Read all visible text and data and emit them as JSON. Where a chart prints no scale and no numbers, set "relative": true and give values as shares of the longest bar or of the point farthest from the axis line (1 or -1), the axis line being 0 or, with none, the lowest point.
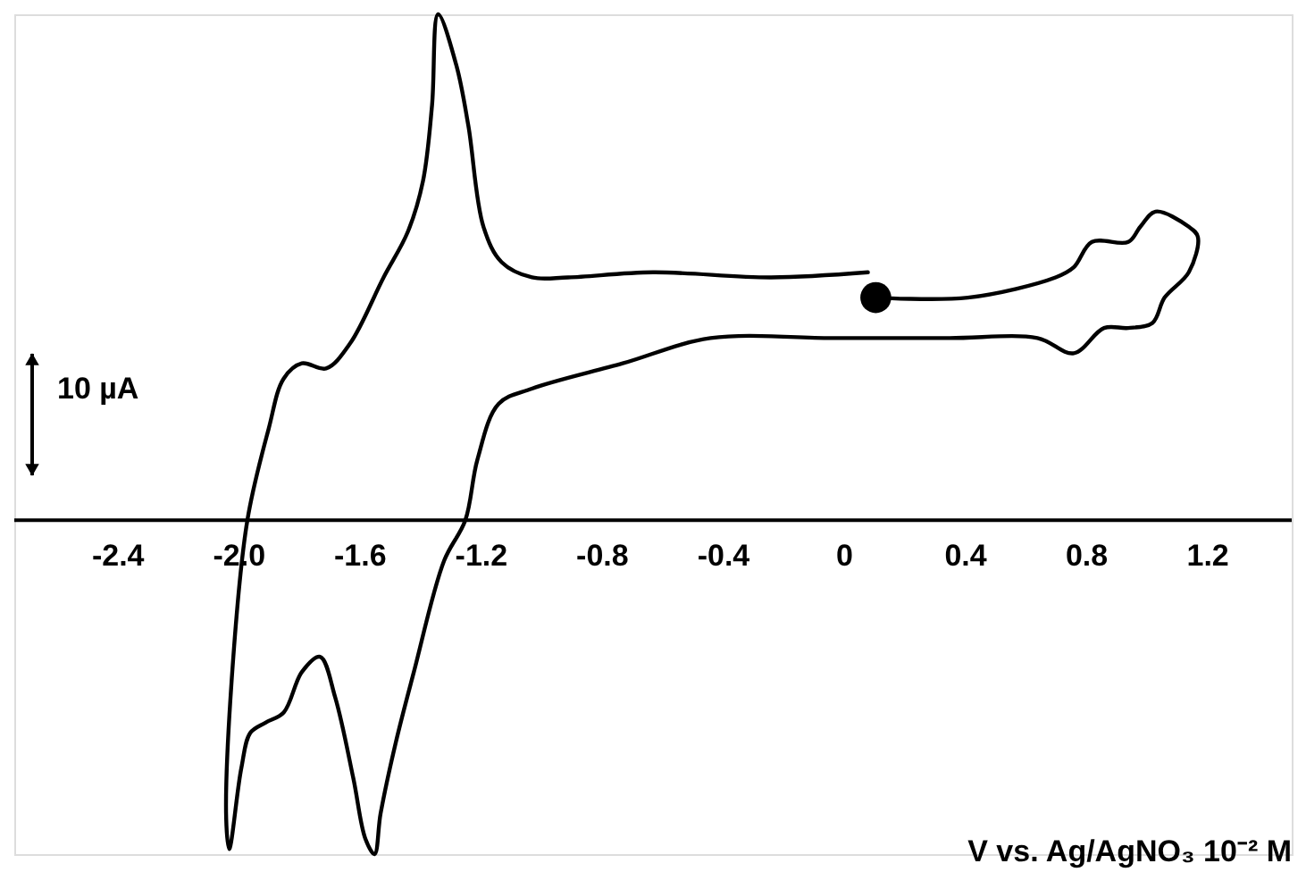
{
  "chart_data": {
    "type": "line",
    "relative": true,
    "xlabel": "V vs. Ag/AgNO₃ 10⁻² M",
    "annotations": [
      "10 µA"
    ],
    "xlim": [
      -2.74,
      1.48
    ],
    "xticks": [
      {
        "value": -2.4,
        "label": "-2.4"
      },
      {
        "value": -2.0,
        "label": "-2.0"
      },
      {
        "value": -1.6,
        "label": "-1.6"
      },
      {
        "value": -1.2,
        "label": "-1.2"
      },
      {
        "value": -0.8,
        "label": "-0.8"
      },
      {
        "value": -0.4,
        "label": "-0.4"
      },
      {
        "value": 0,
        "label": "0"
      },
      {
        "value": 0.4,
        "label": "0.4"
      },
      {
        "value": 0.8,
        "label": "0.8"
      },
      {
        "value": 1.2,
        "label": "1.2"
      }
    ],
    "grid": false,
    "tick_labels": "x",
    "series": [
      {
        "color": "#000000",
        "line_style": "solid",
        "marker": "none",
        "x": [
          0.106,
          0.41,
          0.7,
          0.76,
          0.82,
          0.94,
          0.98,
          1.03,
          1.14,
          1.17,
          1.14,
          1.06,
          1.02,
          0.94,
          0.86,
          0.76,
          0.64,
          0.35,
          -0.04,
          -0.44,
          -0.73,
          -1.03,
          -1.14,
          -1.21,
          -1.25,
          -1.32,
          -1.42,
          -1.48,
          -1.53,
          -1.55,
          -1.58,
          -1.62,
          -1.68,
          -1.73,
          -1.79,
          -1.85,
          -1.91,
          -1.96,
          -1.99,
          -2.03,
          -2.04,
          -2.02,
          -1.97,
          -1.9,
          -1.85,
          -1.79,
          -1.71,
          -1.63,
          -1.52,
          -1.44,
          -1.39,
          -1.36,
          -1.34,
          -1.28,
          -1.24,
          -1.19,
          -1.13,
          -1.03,
          -0.91,
          -0.63,
          -0.24,
          0.08
        ],
        "values": [
          0.44,
          0.44,
          0.48,
          0.5,
          0.55,
          0.55,
          0.58,
          0.61,
          0.58,
          0.56,
          0.49,
          0.44,
          0.39,
          0.38,
          0.38,
          0.33,
          0.36,
          0.36,
          0.36,
          0.36,
          0.31,
          0.26,
          0.23,
          0.12,
          0.0,
          -0.08,
          -0.3,
          -0.44,
          -0.58,
          -0.66,
          -0.63,
          -0.51,
          -0.35,
          -0.27,
          -0.3,
          -0.38,
          -0.4,
          -0.42,
          -0.49,
          -0.65,
          -0.59,
          -0.3,
          0.0,
          0.18,
          0.28,
          0.31,
          0.3,
          0.35,
          0.48,
          0.57,
          0.67,
          0.82,
          1.0,
          0.9,
          0.78,
          0.58,
          0.51,
          0.48,
          0.48,
          0.49,
          0.48,
          0.49
        ]
      },
      {
        "type": "scatter",
        "color": "#000000",
        "marker": "circle",
        "x": [
          0.106
        ],
        "values": [
          0.44
        ]
      }
    ]
  }
}
